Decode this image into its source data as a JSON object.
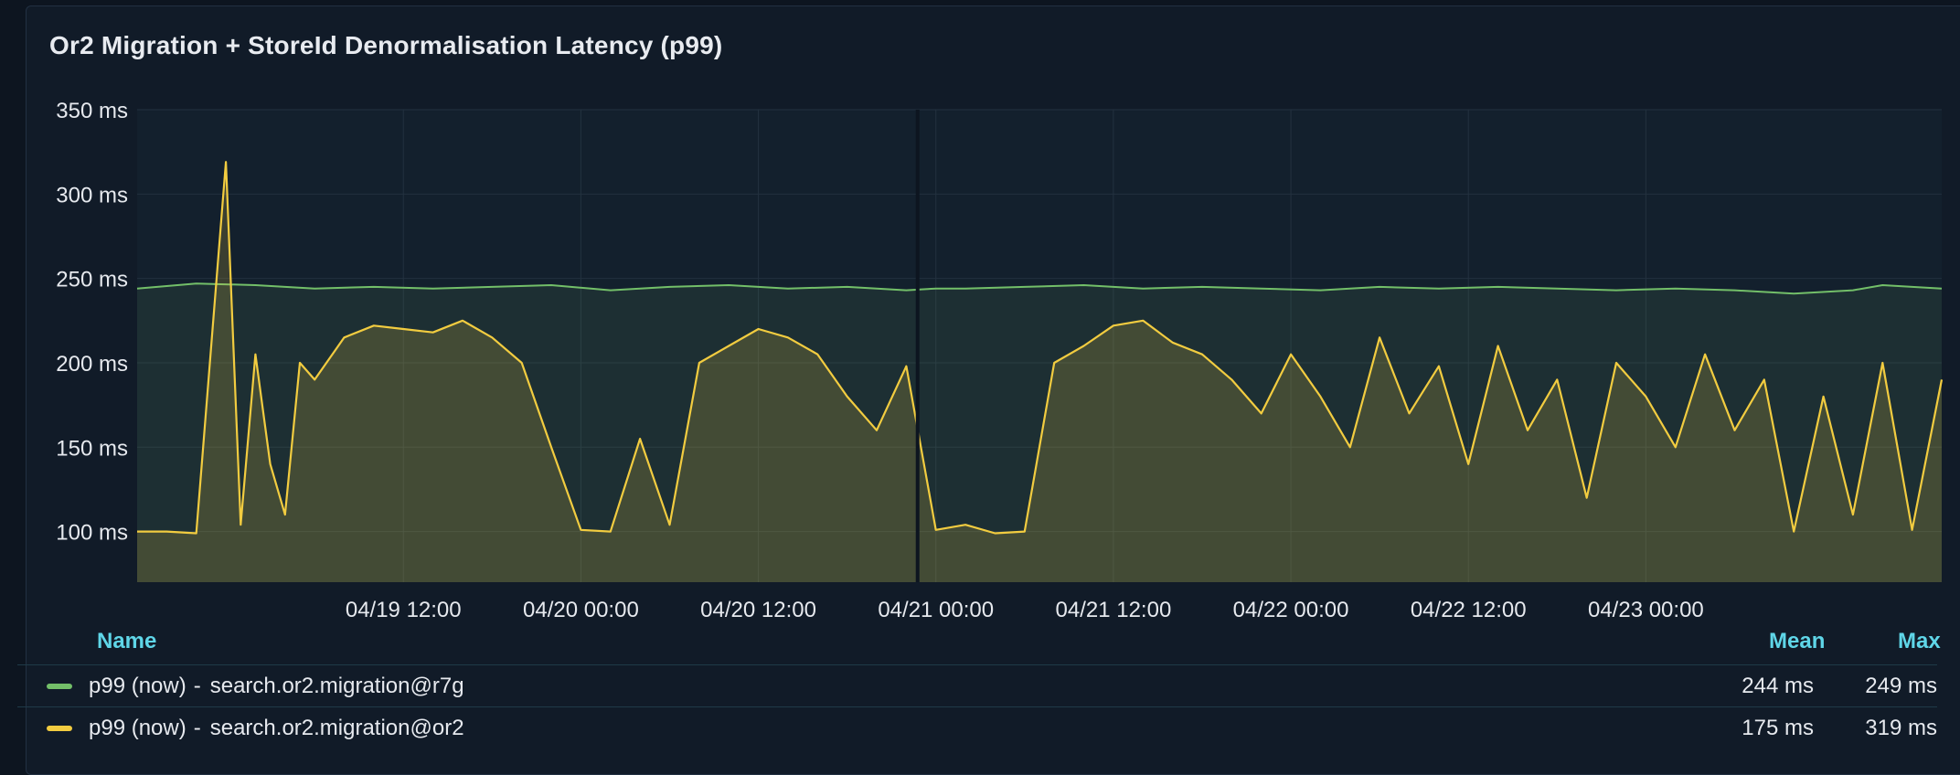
{
  "panel": {
    "title": "Or2 Migration + StoreId Denormalisation Latency (p99)"
  },
  "legend": {
    "name_header": "Name",
    "mean_header": "Mean",
    "max_header": "Max",
    "rows": [
      {
        "label": "p99 (now)",
        "separator": "-",
        "name": "search.or2.migration@r7g",
        "mean": "244 ms",
        "max": "249 ms",
        "color": "#73bf69"
      },
      {
        "label": "p99 (now)",
        "separator": "-",
        "name": "search.or2.migration@or2",
        "mean": "175 ms",
        "max": "319 ms",
        "color": "#f2cc40"
      }
    ]
  },
  "chart_data": {
    "type": "line",
    "ylim": [
      70,
      350
    ],
    "yticks": [
      100,
      150,
      200,
      250,
      300,
      350
    ],
    "ytick_labels": [
      "100 ms",
      "150 ms",
      "200 ms",
      "250 ms",
      "300 ms",
      "350 ms"
    ],
    "xlim": [
      "04/18 18:00",
      "04/23 20:00"
    ],
    "xticks": [
      "04/19 12:00",
      "04/20 00:00",
      "04/20 12:00",
      "04/21 00:00",
      "04/21 12:00",
      "04/22 00:00",
      "04/22 12:00",
      "04/23 00:00"
    ],
    "grid": true,
    "fill": true,
    "series": [
      {
        "name": "search.or2.migration@r7g",
        "color": "#73bf69",
        "x": [
          "04/18 18:00",
          "04/18 22:00",
          "04/19 02:00",
          "04/19 06:00",
          "04/19 10:00",
          "04/19 14:00",
          "04/19 18:00",
          "04/19 22:00",
          "04/20 02:00",
          "04/20 06:00",
          "04/20 10:00",
          "04/20 14:00",
          "04/20 18:00",
          "04/20 22:00",
          "04/21 00:00",
          "04/21 02:00",
          "04/21 06:00",
          "04/21 10:00",
          "04/21 14:00",
          "04/21 18:00",
          "04/21 22:00",
          "04/22 02:00",
          "04/22 06:00",
          "04/22 10:00",
          "04/22 14:00",
          "04/22 18:00",
          "04/22 22:00",
          "04/23 02:00",
          "04/23 06:00",
          "04/23 10:00",
          "04/23 14:00",
          "04/23 16:00",
          "04/23 20:00"
        ],
        "values": [
          244,
          247,
          246,
          244,
          245,
          244,
          245,
          246,
          243,
          245,
          246,
          244,
          245,
          243,
          244,
          244,
          245,
          246,
          244,
          245,
          244,
          243,
          245,
          244,
          245,
          244,
          243,
          244,
          243,
          241,
          243,
          246,
          244
        ]
      },
      {
        "name": "search.or2.migration@or2",
        "color": "#f2cc40",
        "x": [
          "04/18 18:00",
          "04/18 20:00",
          "04/18 22:00",
          "04/19 00:00",
          "04/19 01:00",
          "04/19 02:00",
          "04/19 03:00",
          "04/19 04:00",
          "04/19 05:00",
          "04/19 06:00",
          "04/19 08:00",
          "04/19 10:00",
          "04/19 12:00",
          "04/19 14:00",
          "04/19 16:00",
          "04/19 18:00",
          "04/19 20:00",
          "04/19 22:00",
          "04/20 00:00",
          "04/20 02:00",
          "04/20 04:00",
          "04/20 06:00",
          "04/20 08:00",
          "04/20 10:00",
          "04/20 12:00",
          "04/20 14:00",
          "04/20 16:00",
          "04/20 18:00",
          "04/20 20:00",
          "04/20 22:00",
          "04/21 00:00",
          "04/21 02:00",
          "04/21 04:00",
          "04/21 06:00",
          "04/21 08:00",
          "04/21 10:00",
          "04/21 12:00",
          "04/21 14:00",
          "04/21 16:00",
          "04/21 18:00",
          "04/21 20:00",
          "04/21 22:00",
          "04/22 00:00",
          "04/22 02:00",
          "04/22 04:00",
          "04/22 06:00",
          "04/22 08:00",
          "04/22 10:00",
          "04/22 12:00",
          "04/22 14:00",
          "04/22 16:00",
          "04/22 18:00",
          "04/22 20:00",
          "04/22 22:00",
          "04/23 00:00",
          "04/23 02:00",
          "04/23 04:00",
          "04/23 06:00",
          "04/23 08:00",
          "04/23 10:00",
          "04/23 12:00",
          "04/23 14:00",
          "04/23 16:00",
          "04/23 18:00",
          "04/23 20:00"
        ],
        "values": [
          100,
          100,
          99,
          319,
          104,
          205,
          140,
          110,
          200,
          190,
          215,
          222,
          220,
          218,
          225,
          215,
          200,
          150,
          101,
          100,
          155,
          104,
          200,
          210,
          220,
          215,
          205,
          180,
          160,
          198,
          101,
          104,
          99,
          100,
          200,
          210,
          222,
          225,
          212,
          205,
          190,
          170,
          205,
          180,
          150,
          215,
          170,
          198,
          140,
          210,
          160,
          190,
          120,
          200,
          180,
          150,
          205,
          160,
          190,
          100,
          180,
          110,
          200,
          101,
          190
        ]
      }
    ]
  }
}
